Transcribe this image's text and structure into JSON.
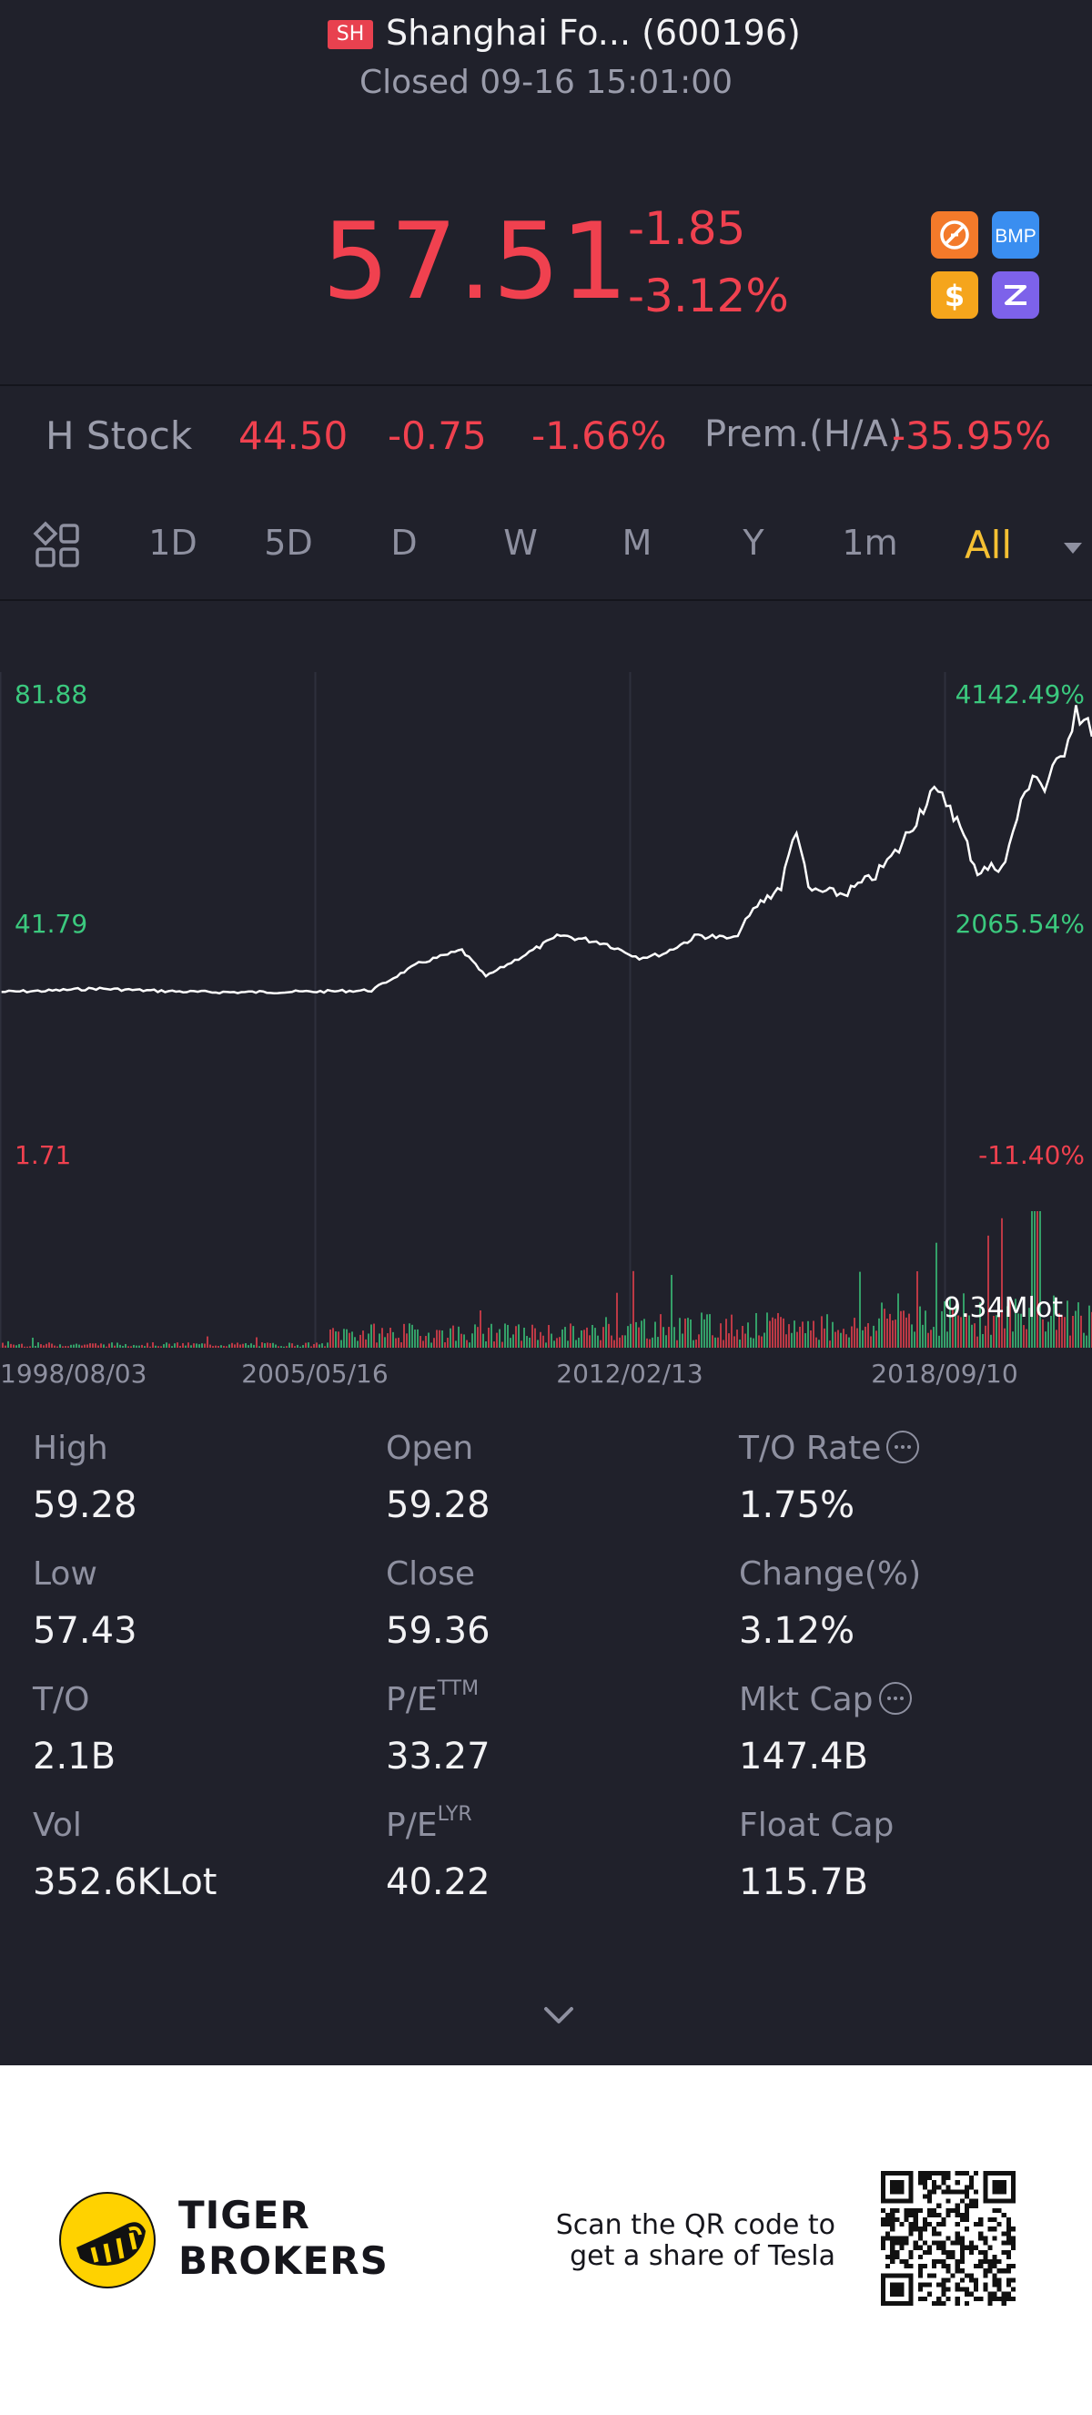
{
  "header": {
    "market_badge": "SH",
    "title": "Shanghai Fo... (600196)",
    "status": "Closed 09-16 15:01:00",
    "price": "57.51",
    "change": "-1.85",
    "change_pct": "-3.12%",
    "icons": [
      "no-commission-icon",
      "bmp-icon",
      "dollar-icon",
      "z-swap-icon"
    ],
    "colors": {
      "down": "#f0414f",
      "up": "#3bc97e",
      "accent": "#f5c033",
      "background": "#20212b"
    }
  },
  "h_stock": {
    "label": "H Stock",
    "price": "44.50",
    "change": "-0.75",
    "change_pct": "-1.66%",
    "premium_label": "Prem.(H/A)",
    "premium_value": "-35.95%"
  },
  "tabs": {
    "items": [
      "1D",
      "5D",
      "D",
      "W",
      "M",
      "Y",
      "1m",
      "All"
    ],
    "active": "All"
  },
  "chart": {
    "left_labels": {
      "high": "81.88",
      "mid": "41.79",
      "low": "1.71"
    },
    "right_labels": {
      "high": "4142.49%",
      "mid": "2065.54%",
      "low": "-11.40%"
    },
    "volume_label": "9.34Mlot",
    "x_labels": [
      "1998/08/03",
      "2005/05/16",
      "2012/02/13",
      "2018/09/10"
    ]
  },
  "chart_data": {
    "type": "line",
    "ylim": [
      1.71,
      81.88
    ],
    "x_ticks": [
      "1998/08/03",
      "2005/05/16",
      "2012/02/13",
      "2018/09/10"
    ],
    "y_ticks_left": [
      81.88,
      41.79,
      1.71
    ],
    "y_ticks_right": [
      "4142.49%",
      "2065.54%",
      "-11.40%"
    ],
    "series": [
      {
        "x": [
          "1998-08",
          "1999-08",
          "2000-08",
          "2001-08",
          "2002-08",
          "2003-08",
          "2004-08",
          "2005-05",
          "2006-06",
          "2007-06",
          "2008-05",
          "2008-11",
          "2009-11",
          "2010-06",
          "2011-05",
          "2012-02",
          "2012-08",
          "2013-05",
          "2014-02",
          "2014-08",
          "2015-02",
          "2015-06",
          "2015-09",
          "2016-06",
          "2017-02",
          "2017-08",
          "2018-04",
          "2018-09",
          "2019-04",
          "2019-11",
          "2020-01",
          "2020-06",
          "2020-09",
          "2021-01",
          "2021-05",
          "2021-09"
        ],
        "values": [
          1.9,
          2.2,
          2.8,
          2.3,
          1.9,
          1.8,
          1.9,
          2.0,
          2.3,
          9.5,
          13.0,
          6.0,
          13.0,
          17.0,
          15.0,
          11.0,
          12.0,
          17.0,
          16.0,
          25.0,
          30.0,
          46.0,
          29.0,
          28.0,
          33.0,
          40.0,
          55.0,
          52.0,
          34.0,
          36.0,
          45.0,
          61.0,
          56.0,
          64.0,
          78.0,
          70.0
        ]
      }
    ],
    "last_volume": "9.34Mlot"
  },
  "stats": {
    "high": {
      "label": "High",
      "value": "59.28"
    },
    "open": {
      "label": "Open",
      "value": "59.28"
    },
    "to_rate": {
      "label": "T/O Rate",
      "value": "1.75%"
    },
    "low": {
      "label": "Low",
      "value": "57.43"
    },
    "close": {
      "label": "Close",
      "value": "59.36"
    },
    "change": {
      "label": "Change(%)",
      "value": "3.12%"
    },
    "to": {
      "label": "T/O",
      "value": "2.1B"
    },
    "pe_ttm": {
      "label": "P/E",
      "sup": "TTM",
      "value": "33.27"
    },
    "mkt_cap": {
      "label": "Mkt Cap",
      "value": "147.4B"
    },
    "vol": {
      "label": "Vol",
      "value": "352.6KLot"
    },
    "pe_lyr": {
      "label": "P/E",
      "sup": "LYR",
      "value": "40.22"
    },
    "float_cap": {
      "label": "Float Cap",
      "value": "115.7B"
    }
  },
  "footer": {
    "brand_line1": "TIGER",
    "brand_line2": "BROKERS",
    "qr_line1": "Scan the QR code to",
    "qr_line2": "get a share of Tesla"
  }
}
